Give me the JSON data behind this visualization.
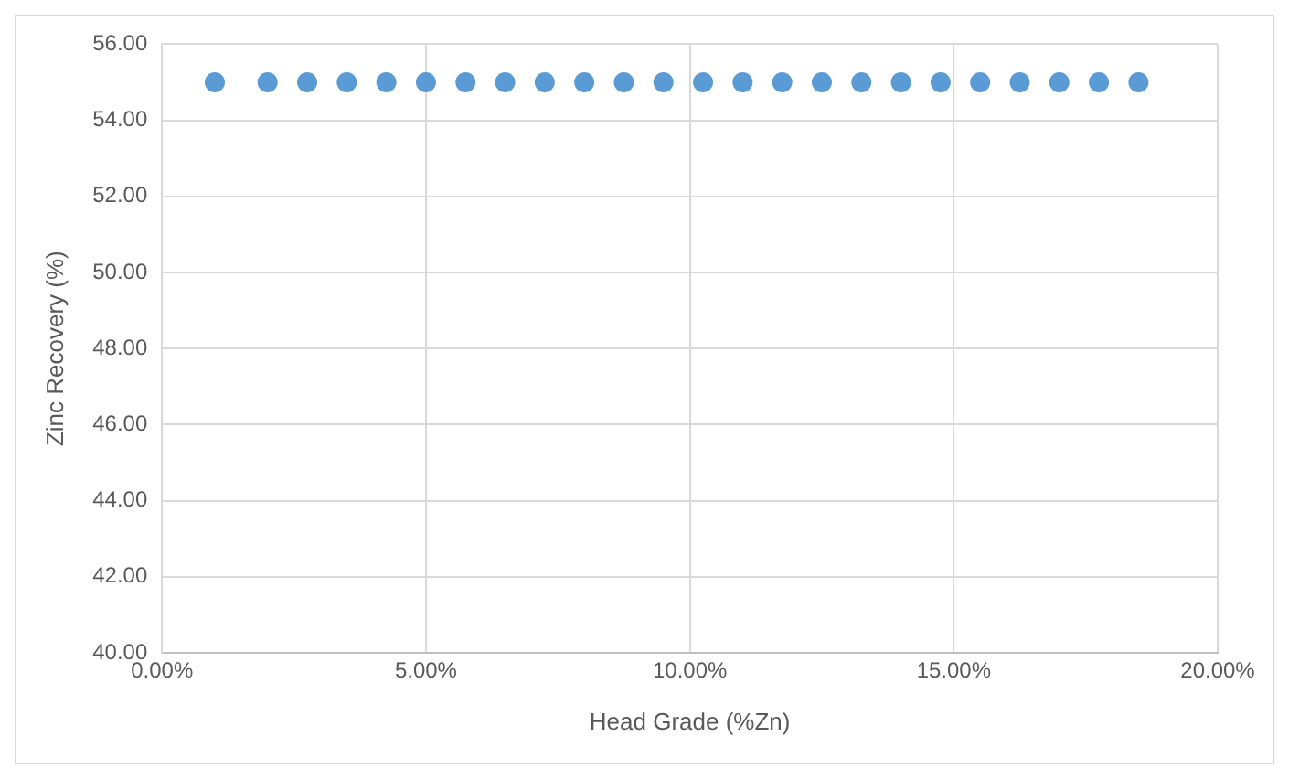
{
  "chart_data": {
    "type": "scatter",
    "xlabel": "Head Grade (%Zn)",
    "ylabel": "Zinc Recovery (%)",
    "x": [
      0.01,
      0.02,
      0.0275,
      0.035,
      0.0425,
      0.05,
      0.0575,
      0.065,
      0.0725,
      0.08,
      0.0875,
      0.095,
      0.1025,
      0.11,
      0.1175,
      0.125,
      0.1325,
      0.14,
      0.1475,
      0.155,
      0.1625,
      0.17,
      0.1775,
      0.185
    ],
    "series": [
      {
        "color": "#5b9bd5",
        "values": [
          55,
          55,
          55,
          55,
          55,
          55,
          55,
          55,
          55,
          55,
          55,
          55,
          55,
          55,
          55,
          55,
          55,
          55,
          55,
          55,
          55,
          55,
          55,
          55
        ]
      }
    ],
    "xlim": [
      0,
      0.2
    ],
    "xticks": [
      {
        "value": 0,
        "label": "0.00%"
      },
      {
        "value": 0.05,
        "label": "5.00%"
      },
      {
        "value": 0.1,
        "label": "10.00%"
      },
      {
        "value": 0.15,
        "label": "15.00%"
      },
      {
        "value": 0.2,
        "label": "20.00%"
      }
    ],
    "ylim": [
      40,
      56
    ],
    "yticks": [
      {
        "value": 40,
        "label": "40.00"
      },
      {
        "value": 42,
        "label": "42.00"
      },
      {
        "value": 44,
        "label": "44.00"
      },
      {
        "value": 46,
        "label": "46.00"
      },
      {
        "value": 48,
        "label": "48.00"
      },
      {
        "value": 50,
        "label": "50.00"
      },
      {
        "value": 52,
        "label": "52.00"
      },
      {
        "value": 54,
        "label": "54.00"
      },
      {
        "value": 56,
        "label": "56.00"
      }
    ],
    "grid": true,
    "legend": false,
    "marker": "circle"
  }
}
